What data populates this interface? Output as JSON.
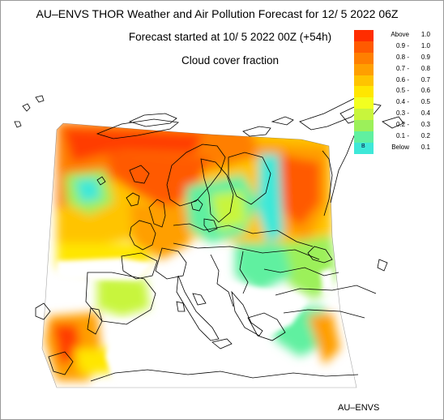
{
  "header": {
    "title": "AU–ENVS THOR Weather and Air Pollution Forecast for 12/ 5 2022  06Z",
    "forecast_start": "Forecast started at 10/ 5 2022  00Z (+54h)",
    "variable": "Cloud cover fraction"
  },
  "legend": {
    "rows": [
      {
        "lo": "Above",
        "hi": "1.0",
        "color": "#ff2d00"
      },
      {
        "lo": "0.9 -",
        "hi": "1.0",
        "color": "#ff5a00"
      },
      {
        "lo": "0.8 -",
        "hi": "0.9",
        "color": "#ff7f00"
      },
      {
        "lo": "0.7 -",
        "hi": "0.8",
        "color": "#ff9f00"
      },
      {
        "lo": "0.6 -",
        "hi": "0.7",
        "color": "#ffc400"
      },
      {
        "lo": "0.5 -",
        "hi": "0.6",
        "color": "#ffe600"
      },
      {
        "lo": "0.4 -",
        "hi": "0.5",
        "color": "#f2ff20"
      },
      {
        "lo": "0.3 -",
        "hi": "0.4",
        "color": "#c8f53c"
      },
      {
        "lo": "0.2 -",
        "hi": "0.3",
        "color": "#9cf05a"
      },
      {
        "lo": "0.1 -",
        "hi": "0.2",
        "color": "#60f0a0"
      },
      {
        "lo": "Below",
        "hi": "0.1",
        "color": "#3ee8d8",
        "mark": "B"
      }
    ]
  },
  "footer": {
    "credit": "AU–ENVS"
  }
}
